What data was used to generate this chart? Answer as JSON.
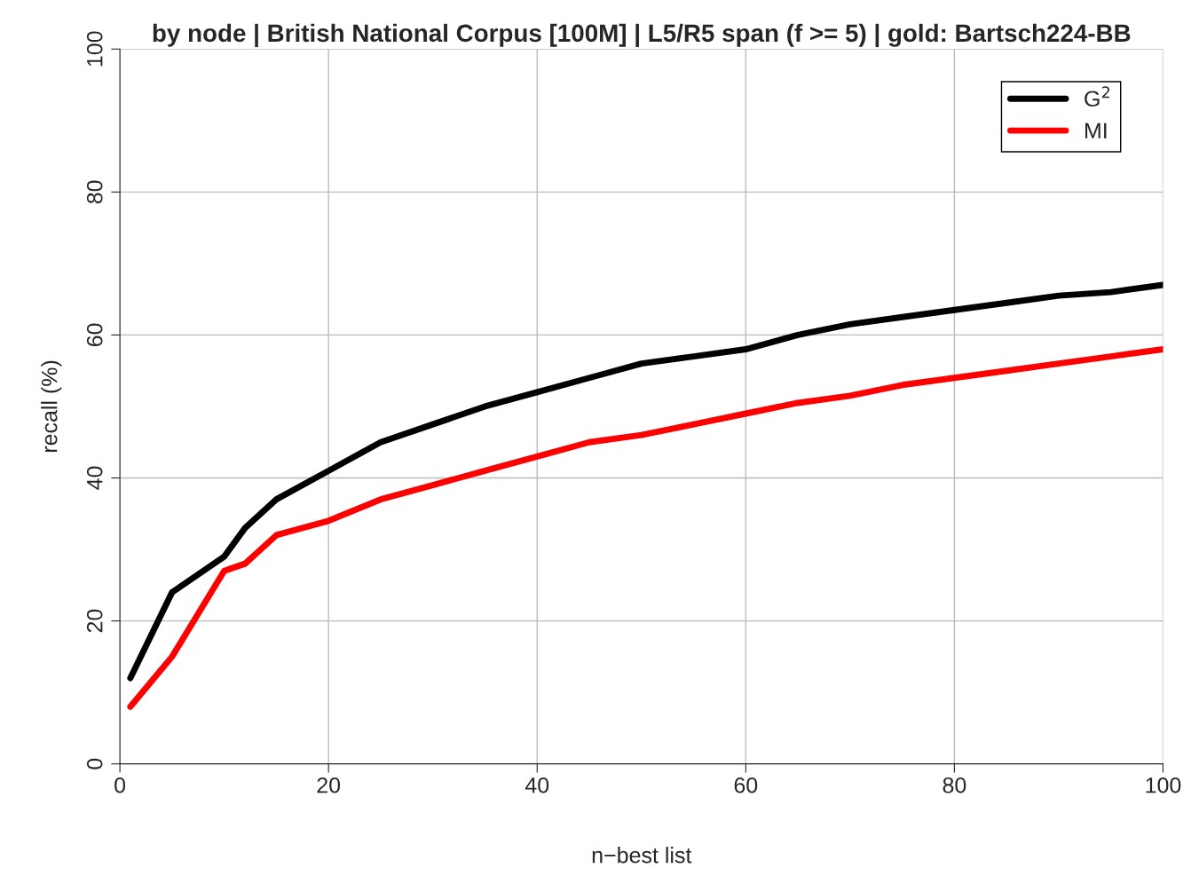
{
  "chart_data": {
    "type": "line",
    "title": "by node | British National Corpus [100M] | L5/R5 span (f >= 5) | gold: Bartsch224-BB",
    "xlabel": "n−best list",
    "ylabel": "recall (%)",
    "x": [
      1,
      5,
      10,
      12,
      15,
      20,
      25,
      30,
      35,
      40,
      45,
      50,
      55,
      60,
      65,
      70,
      75,
      80,
      85,
      90,
      95,
      100
    ],
    "series": [
      {
        "name": "G$^{2}$",
        "color": "#000000",
        "values": [
          12,
          24,
          29,
          33,
          37,
          41,
          45,
          47.5,
          50,
          52,
          54,
          56,
          57,
          58,
          60,
          61.5,
          62.5,
          63.5,
          64.5,
          65.5,
          66,
          67
        ]
      },
      {
        "name": "MI",
        "color": "#ff0000",
        "values": [
          8,
          15,
          27,
          28,
          32,
          34,
          37,
          39,
          41,
          43,
          45,
          46,
          47.5,
          49,
          50.5,
          51.5,
          53,
          54,
          55,
          56,
          57,
          58
        ]
      }
    ],
    "xlim": [
      0,
      100
    ],
    "ylim": [
      0,
      100
    ],
    "xticks": [
      0,
      20,
      40,
      60,
      80,
      100
    ],
    "yticks": [
      0,
      20,
      40,
      60,
      80,
      100
    ],
    "grid": true,
    "legend": "top right",
    "line_style": "solid",
    "marker": "none"
  }
}
